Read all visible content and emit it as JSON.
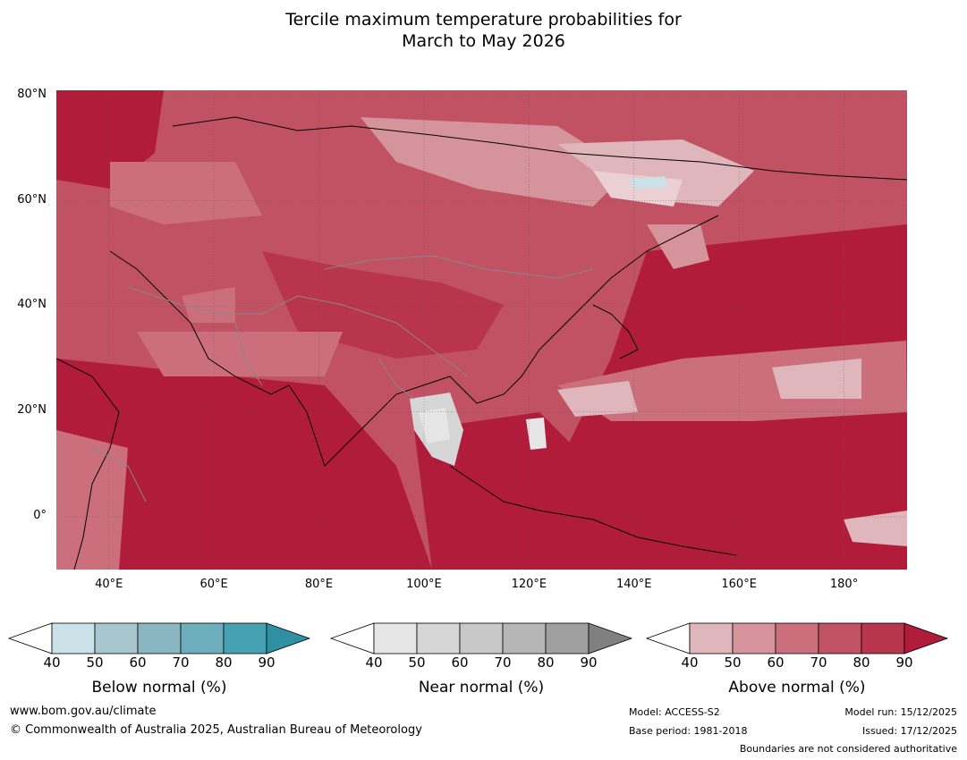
{
  "title": {
    "line1": "Tercile maximum temperature probabilities for",
    "line2": "March to May 2026"
  },
  "map": {
    "lat_labels": [
      {
        "text": "80°N",
        "lat": 80
      },
      {
        "text": "60°N",
        "lat": 60
      },
      {
        "text": "40°N",
        "lat": 40
      },
      {
        "text": "20°N",
        "lat": 20
      },
      {
        "text": "0°",
        "lat": 0
      }
    ],
    "lon_labels": [
      {
        "text": "40°E",
        "lon": 40
      },
      {
        "text": "60°E",
        "lon": 60
      },
      {
        "text": "80°E",
        "lon": 80
      },
      {
        "text": "100°E",
        "lon": 100
      },
      {
        "text": "120°E",
        "lon": 120
      },
      {
        "text": "140°E",
        "lon": 140
      },
      {
        "text": "160°E",
        "lon": 160
      },
      {
        "text": "180°",
        "lon": 180
      }
    ],
    "lon_range": [
      30,
      192
    ],
    "lat_range": [
      -10,
      81
    ],
    "base_color": "#c23a52"
  },
  "legends": [
    {
      "title": "Below normal (%)",
      "ticks": [
        "40",
        "50",
        "60",
        "70",
        "80",
        "90"
      ],
      "colors": [
        "#c9e1e7",
        "#a7c6cd",
        "#8ab6c1",
        "#6daebc",
        "#46a2b3",
        "#2f8fa3"
      ]
    },
    {
      "title": "Near normal (%)",
      "ticks": [
        "40",
        "50",
        "60",
        "70",
        "80",
        "90"
      ],
      "colors": [
        "#e6e6e6",
        "#d6d6d6",
        "#c8c8c8",
        "#b6b6b6",
        "#a0a0a0",
        "#808080"
      ]
    },
    {
      "title": "Above normal (%)",
      "ticks": [
        "40",
        "50",
        "60",
        "70",
        "80",
        "90"
      ],
      "colors": [
        "#dfb6bc",
        "#d5949c",
        "#cb6f7d",
        "#c15264",
        "#b8354c",
        "#b01c3a"
      ]
    }
  ],
  "footer": {
    "website": "www.bom.gov.au/climate",
    "copyright": "© Commonwealth of Australia 2025, Australian Bureau of Meteorology",
    "model": "Model: ACCESS-S2",
    "base_period": "Base period: 1981-2018",
    "model_run": "Model run: 15/12/2025",
    "issued": "Issued: 17/12/2025",
    "disclaimer": "Boundaries are not considered authoritative"
  }
}
